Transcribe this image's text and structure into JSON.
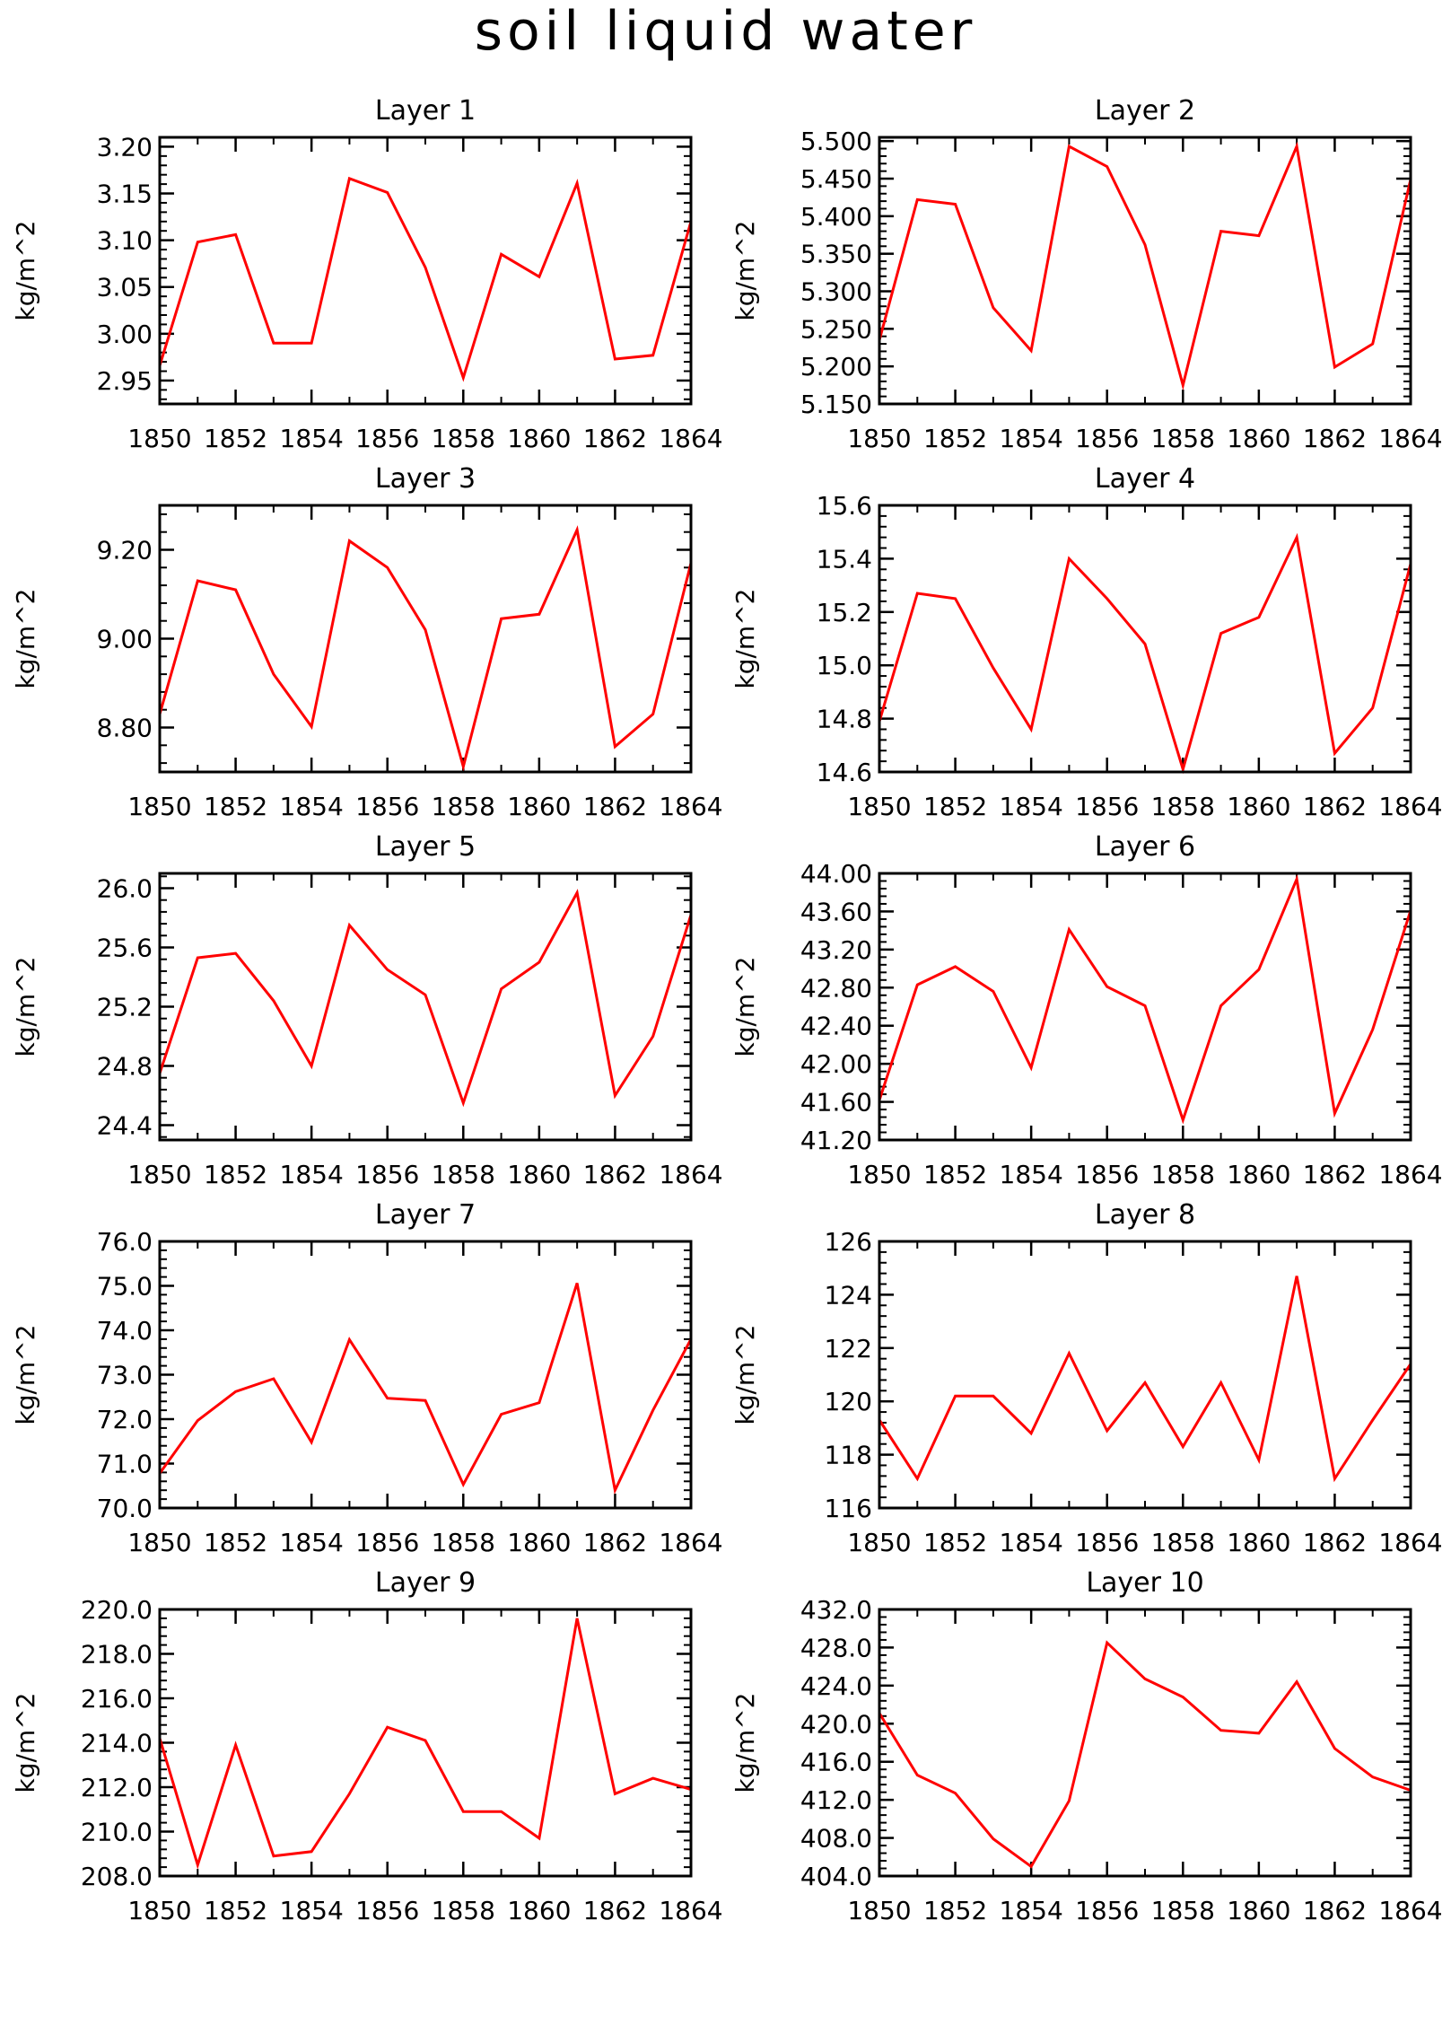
{
  "title": "soil liquid water",
  "colors": {
    "line": "#ff0000",
    "axis": "#000000",
    "background": "#ffffff"
  },
  "chart_data": [
    {
      "type": "line",
      "title": "Layer 1",
      "ylabel": "kg/m^2",
      "x": [
        1850,
        1851,
        1852,
        1853,
        1854,
        1855,
        1856,
        1857,
        1858,
        1859,
        1860,
        1861,
        1862,
        1863,
        1864
      ],
      "y": [
        2.966,
        3.098,
        3.106,
        2.99,
        2.99,
        3.166,
        3.151,
        3.071,
        2.953,
        3.085,
        3.061,
        3.161,
        2.973,
        2.977,
        3.12
      ],
      "ylim": [
        2.925,
        3.21
      ],
      "yticks": [
        2.95,
        3.0,
        3.05,
        3.1,
        3.15,
        3.2
      ],
      "yticklabels": [
        "2.95",
        "3.00",
        "3.05",
        "3.10",
        "3.15",
        "3.20"
      ],
      "xticks": [
        1850,
        1852,
        1854,
        1856,
        1858,
        1860,
        1862,
        1864
      ],
      "xticklabels": [
        "1850",
        "1852",
        "1854",
        "1856",
        "1858",
        "1860",
        "1862",
        "1864"
      ]
    },
    {
      "type": "line",
      "title": "Layer 2",
      "ylabel": "kg/m^2",
      "x": [
        1850,
        1851,
        1852,
        1853,
        1854,
        1855,
        1856,
        1857,
        1858,
        1859,
        1860,
        1861,
        1862,
        1863,
        1864
      ],
      "y": [
        5.235,
        5.422,
        5.416,
        5.278,
        5.221,
        5.493,
        5.466,
        5.362,
        5.175,
        5.38,
        5.374,
        5.493,
        5.199,
        5.23,
        5.449
      ],
      "ylim": [
        5.15,
        5.505
      ],
      "yticks": [
        5.15,
        5.2,
        5.25,
        5.3,
        5.35,
        5.4,
        5.45,
        5.5
      ],
      "yticklabels": [
        "5.150",
        "5.200",
        "5.250",
        "5.300",
        "5.350",
        "5.400",
        "5.450",
        "5.500"
      ],
      "xticks": [
        1850,
        1852,
        1854,
        1856,
        1858,
        1860,
        1862,
        1864
      ],
      "xticklabels": [
        "1850",
        "1852",
        "1854",
        "1856",
        "1858",
        "1860",
        "1862",
        "1864"
      ]
    },
    {
      "type": "line",
      "title": "Layer 3",
      "ylabel": "kg/m^2",
      "x": [
        1850,
        1851,
        1852,
        1853,
        1854,
        1855,
        1856,
        1857,
        1858,
        1859,
        1860,
        1861,
        1862,
        1863,
        1864
      ],
      "y": [
        8.83,
        9.13,
        9.11,
        8.92,
        8.802,
        9.22,
        9.16,
        9.02,
        8.712,
        9.045,
        9.055,
        9.245,
        8.757,
        8.83,
        9.17
      ],
      "ylim": [
        8.7,
        9.3
      ],
      "yticks": [
        8.8,
        9.0,
        9.2
      ],
      "yticklabels": [
        "8.80",
        "9.00",
        "9.20"
      ],
      "xticks": [
        1850,
        1852,
        1854,
        1856,
        1858,
        1860,
        1862,
        1864
      ],
      "xticklabels": [
        "1850",
        "1852",
        "1854",
        "1856",
        "1858",
        "1860",
        "1862",
        "1864"
      ]
    },
    {
      "type": "line",
      "title": "Layer 4",
      "ylabel": "kg/m^2",
      "x": [
        1850,
        1851,
        1852,
        1853,
        1854,
        1855,
        1856,
        1857,
        1858,
        1859,
        1860,
        1861,
        1862,
        1863,
        1864
      ],
      "y": [
        14.79,
        15.27,
        15.25,
        14.99,
        14.76,
        15.4,
        15.25,
        15.08,
        14.61,
        15.12,
        15.18,
        15.48,
        14.67,
        14.84,
        15.38
      ],
      "ylim": [
        14.6,
        15.6
      ],
      "yticks": [
        14.6,
        14.8,
        15.0,
        15.2,
        15.4,
        15.6
      ],
      "yticklabels": [
        "14.6",
        "14.8",
        "15.0",
        "15.2",
        "15.4",
        "15.6"
      ],
      "xticks": [
        1850,
        1852,
        1854,
        1856,
        1858,
        1860,
        1862,
        1864
      ],
      "xticklabels": [
        "1850",
        "1852",
        "1854",
        "1856",
        "1858",
        "1860",
        "1862",
        "1864"
      ]
    },
    {
      "type": "line",
      "title": "Layer 5",
      "ylabel": "kg/m^2",
      "x": [
        1850,
        1851,
        1852,
        1853,
        1854,
        1855,
        1856,
        1857,
        1858,
        1859,
        1860,
        1861,
        1862,
        1863,
        1864
      ],
      "y": [
        24.75,
        25.53,
        25.56,
        25.24,
        24.8,
        25.75,
        25.45,
        25.28,
        24.55,
        25.32,
        25.5,
        25.97,
        24.6,
        25.0,
        25.82
      ],
      "ylim": [
        24.3,
        26.1
      ],
      "yticks": [
        24.4,
        24.8,
        25.2,
        25.6,
        26.0
      ],
      "yticklabels": [
        "24.4",
        "24.8",
        "25.2",
        "25.6",
        "26.0"
      ],
      "xticks": [
        1850,
        1852,
        1854,
        1856,
        1858,
        1860,
        1862,
        1864
      ],
      "xticklabels": [
        "1850",
        "1852",
        "1854",
        "1856",
        "1858",
        "1860",
        "1862",
        "1864"
      ]
    },
    {
      "type": "line",
      "title": "Layer 6",
      "ylabel": "kg/m^2",
      "x": [
        1850,
        1851,
        1852,
        1853,
        1854,
        1855,
        1856,
        1857,
        1858,
        1859,
        1860,
        1861,
        1862,
        1863,
        1864
      ],
      "y": [
        41.62,
        42.83,
        43.02,
        42.76,
        41.96,
        43.41,
        42.81,
        42.61,
        41.41,
        42.61,
        42.99,
        43.94,
        41.48,
        42.36,
        43.61
      ],
      "ylim": [
        41.2,
        44.0
      ],
      "yticks": [
        41.2,
        41.6,
        42.0,
        42.4,
        42.8,
        43.2,
        43.6,
        44.0
      ],
      "yticklabels": [
        "41.20",
        "41.60",
        "42.00",
        "42.40",
        "42.80",
        "43.20",
        "43.60",
        "44.00"
      ],
      "xticks": [
        1850,
        1852,
        1854,
        1856,
        1858,
        1860,
        1862,
        1864
      ],
      "xticklabels": [
        "1850",
        "1852",
        "1854",
        "1856",
        "1858",
        "1860",
        "1862",
        "1864"
      ]
    },
    {
      "type": "line",
      "title": "Layer 7",
      "ylabel": "kg/m^2",
      "x": [
        1850,
        1851,
        1852,
        1853,
        1854,
        1855,
        1856,
        1857,
        1858,
        1859,
        1860,
        1861,
        1862,
        1863,
        1864
      ],
      "y": [
        70.78,
        71.97,
        72.62,
        72.91,
        71.48,
        73.79,
        72.47,
        72.42,
        70.53,
        72.11,
        72.37,
        75.06,
        70.4,
        72.2,
        73.8
      ],
      "ylim": [
        70.0,
        76.0
      ],
      "yticks": [
        70,
        71,
        72,
        73,
        74,
        75,
        76
      ],
      "yticklabels": [
        "70.0",
        "71.0",
        "72.0",
        "73.0",
        "74.0",
        "75.0",
        "76.0"
      ],
      "xticks": [
        1850,
        1852,
        1854,
        1856,
        1858,
        1860,
        1862,
        1864
      ],
      "xticklabels": [
        "1850",
        "1852",
        "1854",
        "1856",
        "1858",
        "1860",
        "1862",
        "1864"
      ]
    },
    {
      "type": "line",
      "title": "Layer 8",
      "ylabel": "kg/m^2",
      "x": [
        1850,
        1851,
        1852,
        1853,
        1854,
        1855,
        1856,
        1857,
        1858,
        1859,
        1860,
        1861,
        1862,
        1863,
        1864
      ],
      "y": [
        119.3,
        117.1,
        120.2,
        120.2,
        118.8,
        121.8,
        118.9,
        120.7,
        118.3,
        120.7,
        117.8,
        124.7,
        117.1,
        119.3,
        121.4
      ],
      "ylim": [
        116,
        126
      ],
      "yticks": [
        116,
        118,
        120,
        122,
        124,
        126
      ],
      "yticklabels": [
        "116",
        "118",
        "120",
        "122",
        "124",
        "126"
      ],
      "xticks": [
        1850,
        1852,
        1854,
        1856,
        1858,
        1860,
        1862,
        1864
      ],
      "xticklabels": [
        "1850",
        "1852",
        "1854",
        "1856",
        "1858",
        "1860",
        "1862",
        "1864"
      ]
    },
    {
      "type": "line",
      "title": "Layer 9",
      "ylabel": "kg/m^2",
      "x": [
        1850,
        1851,
        1852,
        1853,
        1854,
        1855,
        1856,
        1857,
        1858,
        1859,
        1860,
        1861,
        1862,
        1863,
        1864
      ],
      "y": [
        214.2,
        208.5,
        213.9,
        208.9,
        209.1,
        211.7,
        214.7,
        214.1,
        210.9,
        210.9,
        209.7,
        219.6,
        211.7,
        212.4,
        211.9
      ],
      "ylim": [
        208,
        220
      ],
      "yticks": [
        208,
        210,
        212,
        214,
        216,
        218,
        220
      ],
      "yticklabels": [
        "208.0",
        "210.0",
        "212.0",
        "214.0",
        "216.0",
        "218.0",
        "220.0"
      ],
      "xticks": [
        1850,
        1852,
        1854,
        1856,
        1858,
        1860,
        1862,
        1864
      ],
      "xticklabels": [
        "1850",
        "1852",
        "1854",
        "1856",
        "1858",
        "1860",
        "1862",
        "1864"
      ]
    },
    {
      "type": "line",
      "title": "Layer 10",
      "ylabel": "kg/m^2",
      "x": [
        1850,
        1851,
        1852,
        1853,
        1854,
        1855,
        1856,
        1857,
        1858,
        1859,
        1860,
        1861,
        1862,
        1863,
        1864
      ],
      "y": [
        421.1,
        414.6,
        412.7,
        407.9,
        405.0,
        411.9,
        428.5,
        424.7,
        422.8,
        419.3,
        419.0,
        424.4,
        417.4,
        414.4,
        413.0
      ],
      "ylim": [
        404,
        432
      ],
      "yticks": [
        404,
        408,
        412,
        416,
        420,
        424,
        428,
        432
      ],
      "yticklabels": [
        "404.0",
        "408.0",
        "412.0",
        "416.0",
        "420.0",
        "424.0",
        "428.0",
        "432.0"
      ],
      "xticks": [
        1850,
        1852,
        1854,
        1856,
        1858,
        1860,
        1862,
        1864
      ],
      "xticklabels": [
        "1850",
        "1852",
        "1854",
        "1856",
        "1858",
        "1860",
        "1862",
        "1864"
      ]
    }
  ]
}
